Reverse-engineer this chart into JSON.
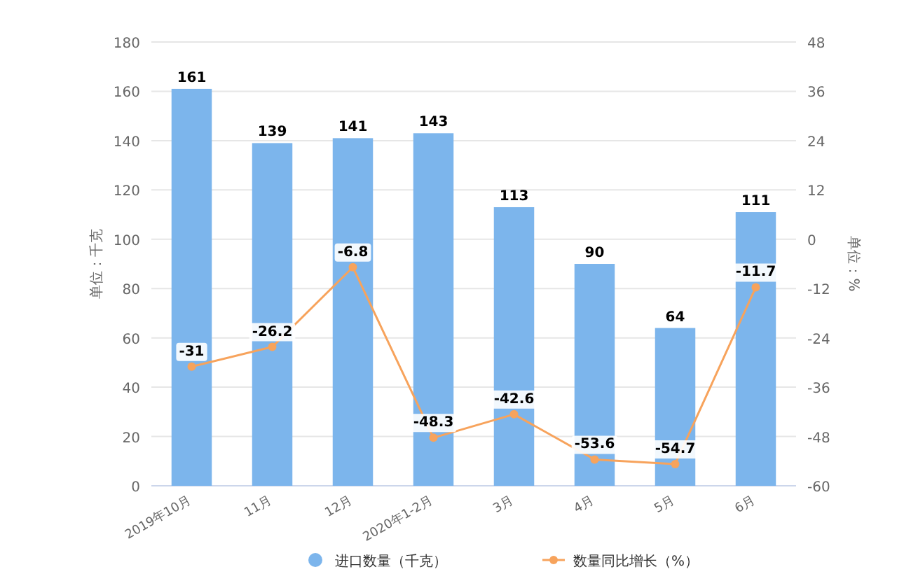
{
  "chart_data": {
    "type": "bar",
    "categories": [
      "2019年10月",
      "11月",
      "12月",
      "2020年1-2月",
      "3月",
      "4月",
      "5月",
      "6月"
    ],
    "series": [
      {
        "name": "进口数量（千克）",
        "color": "#7cb5ec",
        "values": [
          161,
          139,
          141,
          143,
          113,
          90,
          64,
          111
        ]
      },
      {
        "name": "数量同比增长（%）",
        "type": "line",
        "axis": "y2",
        "color": "#f7a35c",
        "values": [
          -31,
          -26.2,
          -6.8,
          -48.3,
          -42.6,
          -53.6,
          -54.7,
          -11.7
        ]
      }
    ],
    "ylabel": "单位：千克",
    "y2label": "单位：%",
    "ylim": [
      0,
      180
    ],
    "yticks": [
      0,
      20,
      40,
      60,
      80,
      100,
      120,
      140,
      160,
      180
    ],
    "y2lim": [
      -60,
      48
    ],
    "y2ticks": [
      -60,
      -48,
      -36,
      -24,
      -12,
      0,
      12,
      24,
      36,
      48
    ],
    "grid": "y",
    "legend": "bottom",
    "data_labels": true,
    "marker": "circle"
  }
}
